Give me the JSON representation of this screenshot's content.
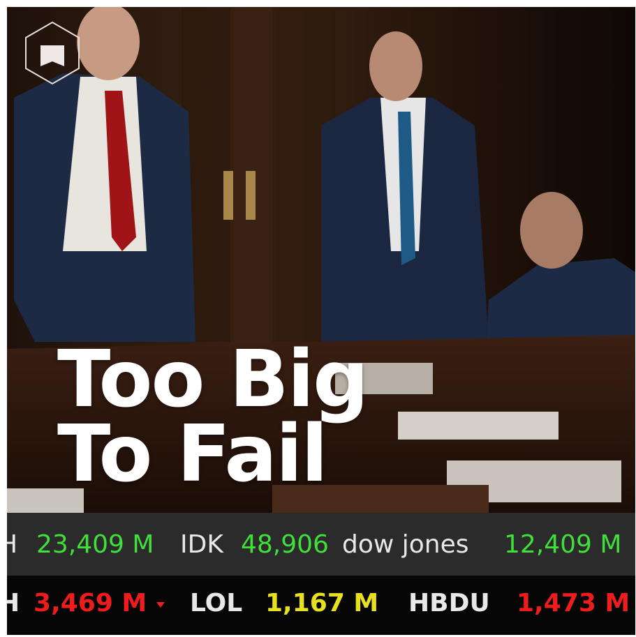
{
  "poster": {
    "title_lines": [
      "Too Big",
      "To Fail"
    ],
    "tickers": [
      [
        {
          "text": "H",
          "color": "#e8e8e8"
        },
        {
          "text": "23,409 M",
          "color": "#3fe03a"
        },
        {
          "text": "IDK",
          "color": "#e8e8e8"
        },
        {
          "text": "48,906",
          "color": "#3fe03a"
        },
        {
          "text": "dow jones",
          "color": "#e8e8e8"
        },
        {
          "text": "12,409 M",
          "color": "#3fe03a"
        }
      ],
      [
        {
          "text": "H",
          "color": "#e8e8e8"
        },
        {
          "text": "3,469 M",
          "color": "#ee1c1c"
        },
        {
          "text": "LOL",
          "color": "#e8e8e8"
        },
        {
          "text": "1,167 M",
          "color": "#e6e01e"
        },
        {
          "text": "HBDU",
          "color": "#e8e8e8"
        },
        {
          "text": "1,473 M",
          "color": "#ee1c1c"
        }
      ]
    ]
  }
}
